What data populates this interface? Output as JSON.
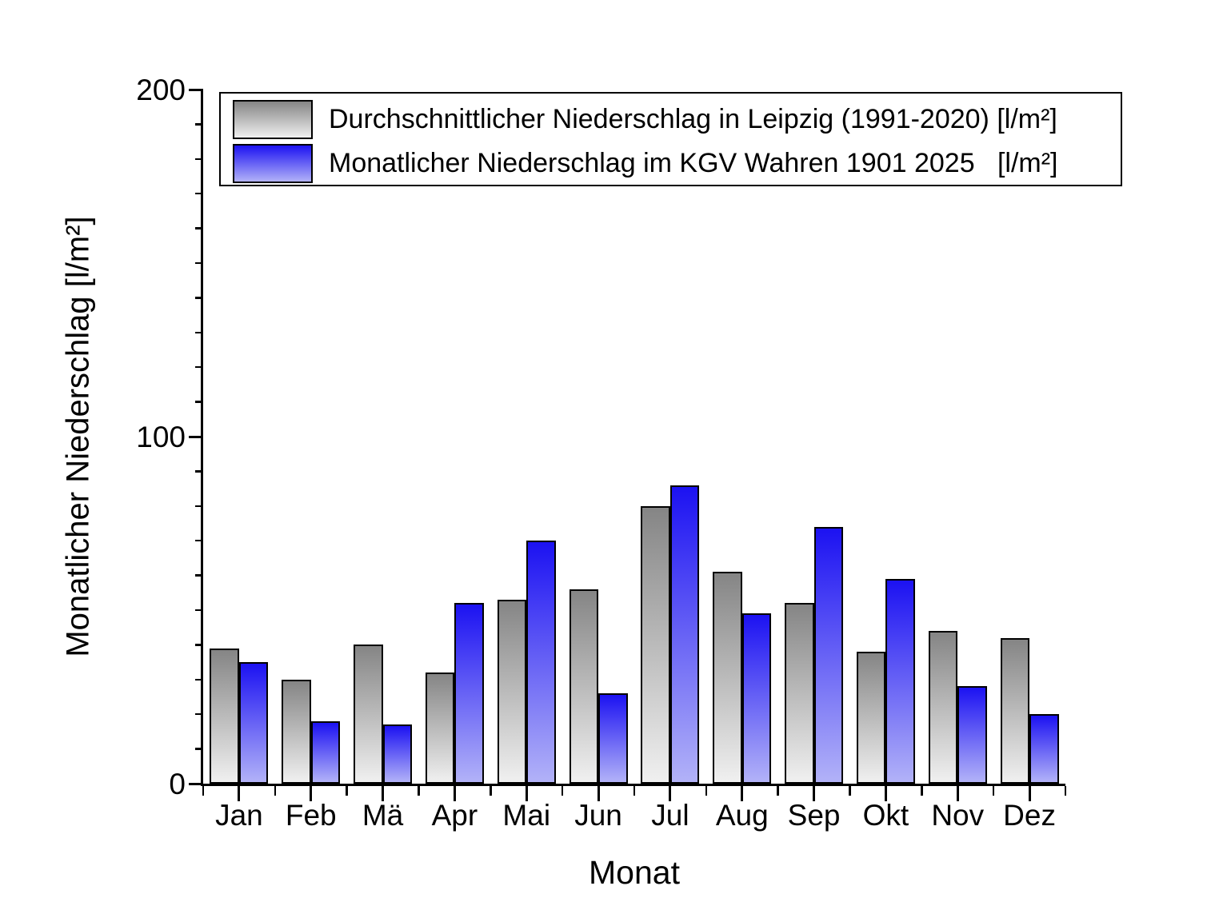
{
  "chart_data": {
    "type": "bar",
    "title": "",
    "xlabel": "Monat",
    "ylabel": "Monatlicher Niederschlag [l/m²]",
    "categories": [
      "Jan",
      "Feb",
      "Mä",
      "Apr",
      "Mai",
      "Jun",
      "Jul",
      "Aug",
      "Sep",
      "Okt",
      "Nov",
      "Dez"
    ],
    "series": [
      {
        "name": "Durchschnittlicher Niederschlag in Leipzig (1991-2020) [l/m²]",
        "values": [
          39,
          30,
          40,
          32,
          53,
          56,
          80,
          61,
          52,
          38,
          44,
          42
        ],
        "color_top": "#858585",
        "color_bottom": "#F0F0F0"
      },
      {
        "name": "Monatlicher Niederschlag im KGV Wahren 1901 2025   [l/m²]",
        "values": [
          35,
          18,
          17,
          52,
          70,
          26,
          86,
          49,
          74,
          59,
          28,
          20
        ],
        "color_top": "#1C12F2",
        "color_bottom": "#B2B2F8"
      }
    ],
    "ylim": [
      0,
      200
    ],
    "yticks_major": [
      0,
      100,
      200
    ],
    "ytick_minor_step": 10,
    "grid": false,
    "legend_position": "top-left-inside",
    "bar_border_color": "#000000",
    "axis_color": "#000000",
    "background_color": "#FFFFFF"
  }
}
